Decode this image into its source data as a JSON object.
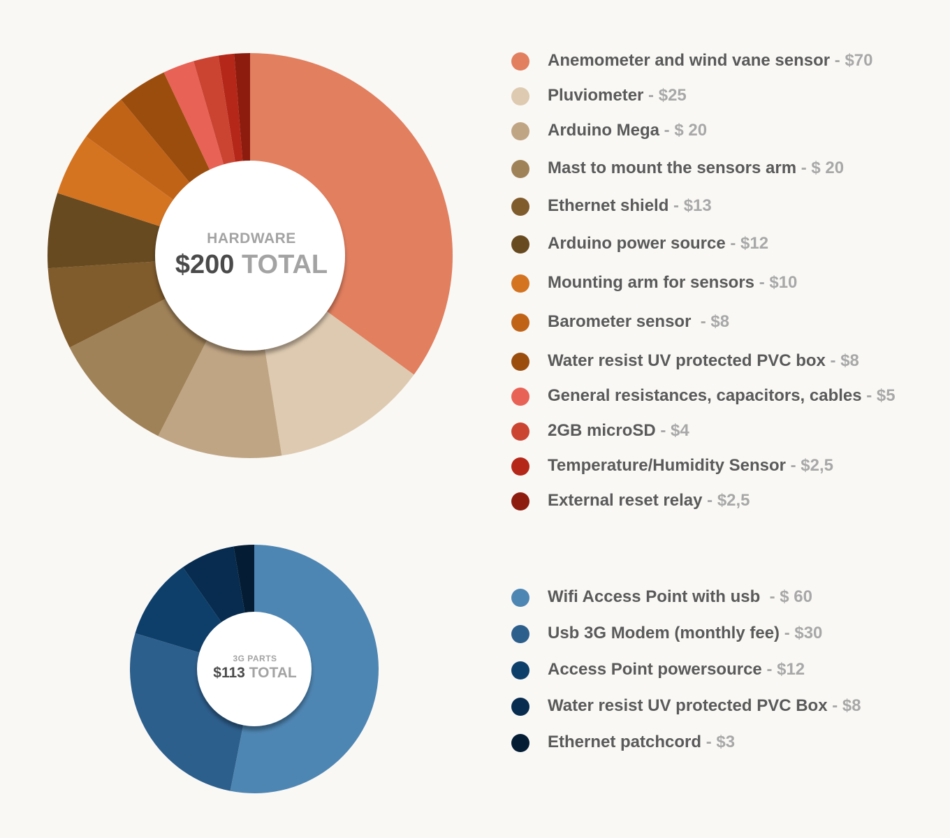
{
  "chart_data": [
    {
      "type": "pie",
      "title": "HARDWARE",
      "center_label": "HARDWARE",
      "center_amount": "$200",
      "center_total_word": "TOTAL",
      "total": 200,
      "categories": [
        "Anemometer and wind vane sensor",
        "Pluviometer",
        "Arduino Mega",
        "Mast to mount the sensors arm",
        "Ethernet shield",
        "Arduino power source",
        "Mounting arm for sensors",
        "Barometer sensor",
        "Water resist UV protected PVC box",
        "General resistances, capacitors, cables",
        "2GB microSD",
        "Temperature/Humidity Sensor",
        "External reset relay"
      ],
      "values": [
        70,
        25,
        20,
        20,
        13,
        12,
        10,
        8,
        8,
        5,
        4,
        2.5,
        2.5
      ],
      "price_labels": [
        " - $70",
        " - $25",
        " - $ 20",
        " - $ 20",
        " - $13",
        " - $12",
        " - $10",
        "  - $8",
        " - $8",
        " - $5",
        " - $4",
        " - $2,5",
        " - $2,5"
      ],
      "colors": [
        "#e17f5f",
        "#decab0",
        "#bfa584",
        "#a08258",
        "#805b2c",
        "#684a20",
        "#d47421",
        "#c06317",
        "#9b4d0e",
        "#e86255",
        "#cb4432",
        "#b52718",
        "#8d1c0e"
      ]
    },
    {
      "type": "pie",
      "title": "3G PARTS",
      "center_label": "3G PARTS",
      "center_amount": "$113",
      "center_total_word": "TOTAL",
      "total": 113,
      "categories": [
        "Wifi Access Point with usb ",
        "Usb 3G Modem (monthly fee)",
        "Access Point powersource",
        "Water resist UV protected PVC Box",
        "Ethernet patchcord"
      ],
      "values": [
        60,
        30,
        12,
        8,
        3
      ],
      "price_labels": [
        " - $ 60",
        " - $30",
        " - $12",
        " - $8",
        " - $3"
      ],
      "colors": [
        "#4e86b3",
        "#2d5f8d",
        "#0e3f6a",
        "#072c4f",
        "#041d35"
      ]
    }
  ]
}
